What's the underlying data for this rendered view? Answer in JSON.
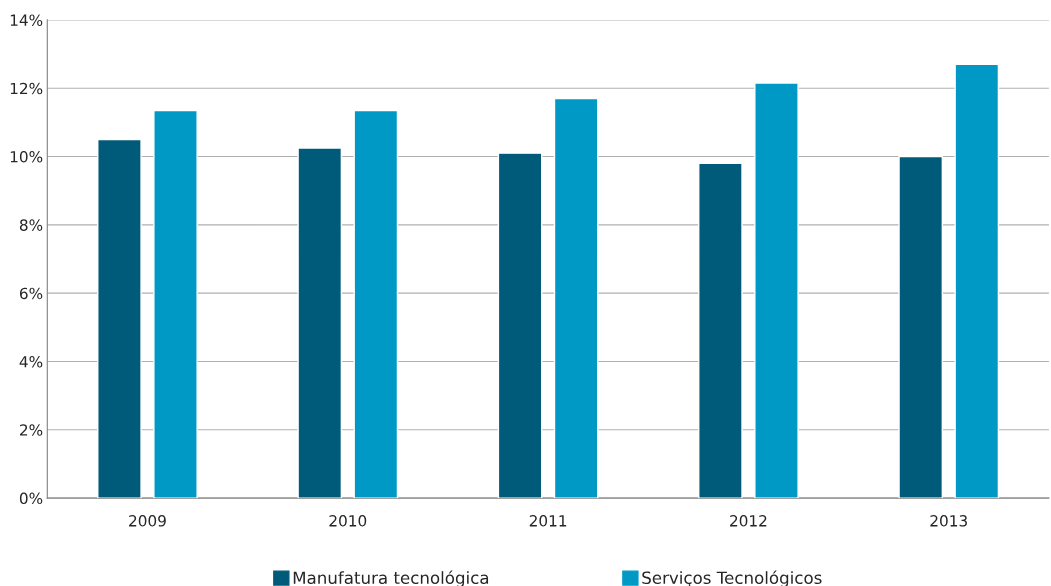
{
  "chart_data": {
    "type": "bar",
    "categories": [
      "2009",
      "2010",
      "2011",
      "2012",
      "2013"
    ],
    "series": [
      {
        "name": "Manufatura tecnológica",
        "color": "#005a7a",
        "values": [
          10.5,
          10.25,
          10.1,
          9.8,
          10.0
        ]
      },
      {
        "name": "Serviços Tecnológicos",
        "color": "#0099c6",
        "values": [
          11.35,
          11.35,
          11.7,
          12.15,
          12.7
        ]
      }
    ],
    "ylim": [
      0,
      14
    ],
    "yticks": [
      {
        "value": 0,
        "label": "0%"
      },
      {
        "value": 2,
        "label": "2%"
      },
      {
        "value": 4,
        "label": "4%"
      },
      {
        "value": 6,
        "label": "6%"
      },
      {
        "value": 8,
        "label": "8%"
      },
      {
        "value": 10,
        "label": "10%"
      },
      {
        "value": 12,
        "label": "12%"
      },
      {
        "value": 14,
        "label": "14%"
      }
    ],
    "grid": "y",
    "legend": "bottom"
  }
}
